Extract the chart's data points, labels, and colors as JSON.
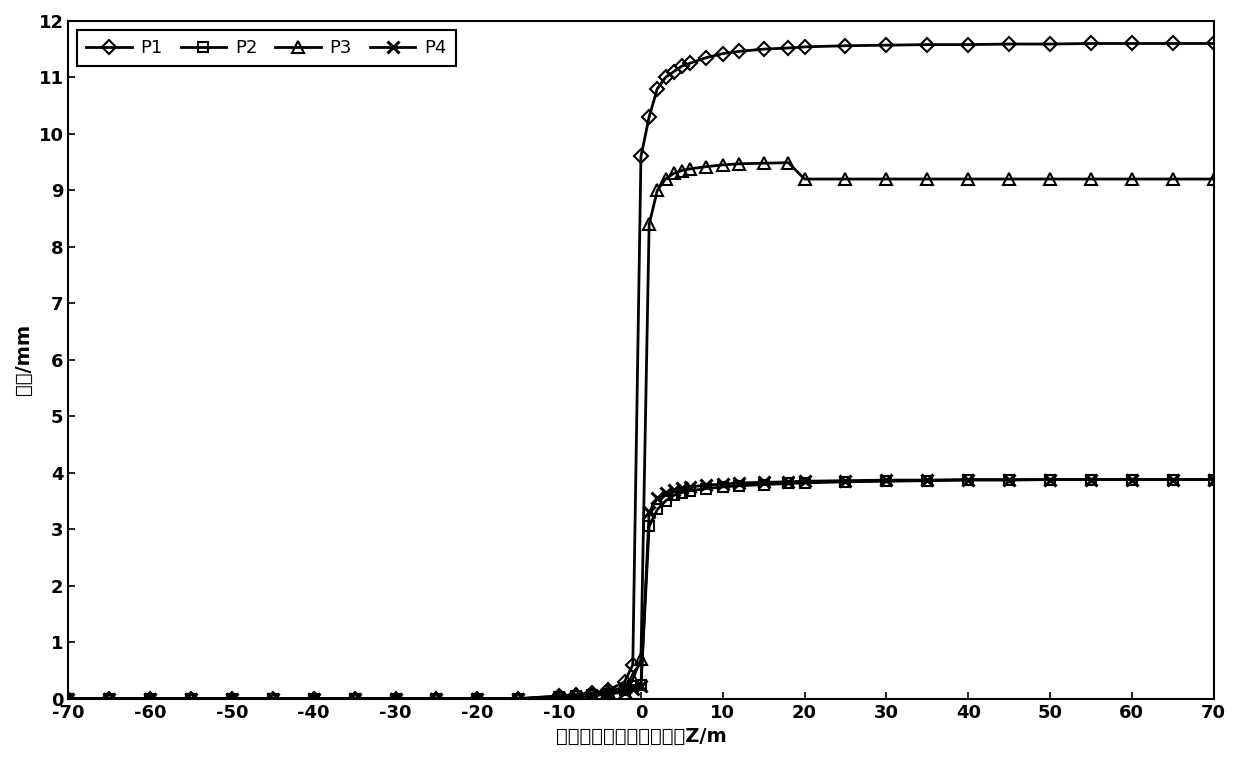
{
  "xlabel": "开挖面与监测断面的距离Z/m",
  "ylabel": "位移/mm",
  "xlim": [
    -70,
    70
  ],
  "ylim": [
    0,
    12
  ],
  "xticks": [
    -70,
    -60,
    -50,
    -40,
    -30,
    -20,
    -10,
    0,
    10,
    20,
    30,
    40,
    50,
    60,
    70
  ],
  "yticks": [
    0,
    1,
    2,
    3,
    4,
    5,
    6,
    7,
    8,
    9,
    10,
    11,
    12
  ],
  "series": [
    {
      "label": "P1",
      "marker": "D",
      "markersize": 7,
      "x": [
        -70,
        -65,
        -60,
        -55,
        -50,
        -45,
        -40,
        -35,
        -30,
        -25,
        -20,
        -15,
        -10,
        -8,
        -6,
        -4,
        -2,
        -1,
        0,
        1,
        2,
        3,
        4,
        5,
        6,
        8,
        10,
        12,
        15,
        18,
        20,
        25,
        30,
        35,
        40,
        45,
        50,
        55,
        60,
        65,
        70
      ],
      "y": [
        0.0,
        0.0,
        0.0,
        0.0,
        0.0,
        0.0,
        0.0,
        0.0,
        0.0,
        0.0,
        0.0,
        0.0,
        0.05,
        0.07,
        0.1,
        0.15,
        0.3,
        0.6,
        9.6,
        10.3,
        10.8,
        11.0,
        11.1,
        11.2,
        11.25,
        11.35,
        11.42,
        11.46,
        11.5,
        11.52,
        11.54,
        11.56,
        11.57,
        11.58,
        11.58,
        11.59,
        11.59,
        11.6,
        11.6,
        11.6,
        11.6
      ]
    },
    {
      "label": "P2",
      "marker": "s",
      "markersize": 7,
      "x": [
        -70,
        -65,
        -60,
        -55,
        -50,
        -45,
        -40,
        -35,
        -30,
        -25,
        -20,
        -15,
        -10,
        -8,
        -6,
        -4,
        -2,
        -1,
        0,
        1,
        2,
        3,
        4,
        5,
        6,
        8,
        10,
        12,
        15,
        18,
        20,
        25,
        30,
        35,
        40,
        45,
        50,
        55,
        60,
        65,
        70
      ],
      "y": [
        0.0,
        0.0,
        0.0,
        0.0,
        0.0,
        0.0,
        0.0,
        0.0,
        0.0,
        0.0,
        0.0,
        0.0,
        0.03,
        0.04,
        0.06,
        0.09,
        0.15,
        0.22,
        0.25,
        3.05,
        3.35,
        3.5,
        3.6,
        3.65,
        3.68,
        3.72,
        3.75,
        3.77,
        3.79,
        3.81,
        3.82,
        3.84,
        3.85,
        3.86,
        3.87,
        3.87,
        3.88,
        3.88,
        3.88,
        3.88,
        3.88
      ]
    },
    {
      "label": "P3",
      "marker": "^",
      "markersize": 8,
      "x": [
        -70,
        -65,
        -60,
        -55,
        -50,
        -45,
        -40,
        -35,
        -30,
        -25,
        -20,
        -15,
        -10,
        -8,
        -6,
        -4,
        -2,
        -1,
        0,
        1,
        2,
        3,
        4,
        5,
        6,
        8,
        10,
        12,
        15,
        18,
        20,
        25,
        30,
        35,
        40,
        45,
        50,
        55,
        60,
        65,
        70
      ],
      "y": [
        0.0,
        0.0,
        0.0,
        0.0,
        0.0,
        0.0,
        0.0,
        0.0,
        0.0,
        0.0,
        0.0,
        0.0,
        0.04,
        0.06,
        0.09,
        0.13,
        0.2,
        0.35,
        0.7,
        8.4,
        9.0,
        9.2,
        9.3,
        9.35,
        9.38,
        9.42,
        9.45,
        9.47,
        9.48,
        9.49,
        9.2,
        9.2,
        9.2,
        9.2,
        9.2,
        9.2,
        9.2,
        9.2,
        9.2,
        9.2,
        9.2
      ]
    },
    {
      "label": "P4",
      "marker": "x",
      "markersize": 9,
      "x": [
        -70,
        -65,
        -60,
        -55,
        -50,
        -45,
        -40,
        -35,
        -30,
        -25,
        -20,
        -15,
        -10,
        -8,
        -6,
        -4,
        -2,
        -1,
        0,
        1,
        2,
        3,
        4,
        5,
        6,
        8,
        10,
        12,
        15,
        18,
        20,
        25,
        30,
        35,
        40,
        45,
        50,
        55,
        60,
        65,
        70
      ],
      "y": [
        0.0,
        0.0,
        0.0,
        0.0,
        0.0,
        0.0,
        0.0,
        0.0,
        0.0,
        0.0,
        0.0,
        0.0,
        0.02,
        0.03,
        0.05,
        0.08,
        0.12,
        0.18,
        0.22,
        3.3,
        3.55,
        3.65,
        3.7,
        3.73,
        3.75,
        3.78,
        3.8,
        3.82,
        3.83,
        3.84,
        3.85,
        3.86,
        3.87,
        3.87,
        3.88,
        3.88,
        3.88,
        3.88,
        3.88,
        3.88,
        3.88
      ]
    }
  ],
  "color": "#000000",
  "linewidth": 2.0,
  "background_color": "#ffffff"
}
